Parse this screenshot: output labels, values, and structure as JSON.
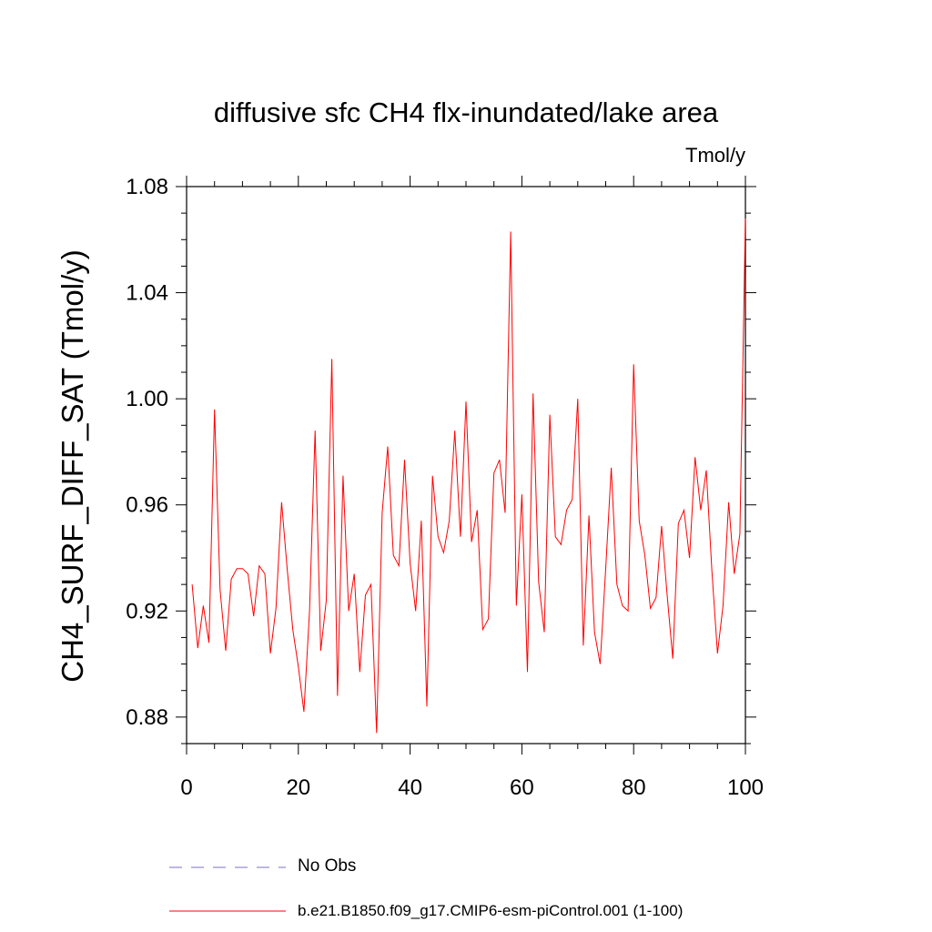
{
  "chart_data": {
    "type": "line",
    "title": "diffusive sfc CH4 flx-inundated/lake area",
    "units_label": "Tmol/y",
    "ylabel": "CH4_SURF_DIFF_SAT  (Tmol/y)",
    "xlabel": "",
    "xlim": [
      0,
      100
    ],
    "ylim": [
      0.87,
      1.08
    ],
    "xticks": [
      0,
      20,
      40,
      60,
      80,
      100
    ],
    "xtick_labels": [
      "0",
      "20",
      "40",
      "60",
      "80",
      "100"
    ],
    "yticks": [
      0.88,
      0.92,
      0.96,
      1.0,
      1.04,
      1.08
    ],
    "ytick_labels": [
      "0.88",
      "0.92",
      "0.96",
      "1.00",
      "1.04",
      "1.08"
    ],
    "grid": false,
    "legend_position": "bottom",
    "series": [
      {
        "name": "No Obs",
        "color": "#7b6fc8",
        "dash": "dashed",
        "values": []
      },
      {
        "name": "b.e21.B1850.f09_g17.CMIP6-esm-piControl.001 (1-100)",
        "color": "#ff0000",
        "dash": "solid",
        "x": [
          1,
          2,
          3,
          4,
          5,
          6,
          7,
          8,
          9,
          10,
          11,
          12,
          13,
          14,
          15,
          16,
          17,
          18,
          19,
          20,
          21,
          22,
          23,
          24,
          25,
          26,
          27,
          28,
          29,
          30,
          31,
          32,
          33,
          34,
          35,
          36,
          37,
          38,
          39,
          40,
          41,
          42,
          43,
          44,
          45,
          46,
          47,
          48,
          49,
          50,
          51,
          52,
          53,
          54,
          55,
          56,
          57,
          58,
          59,
          60,
          61,
          62,
          63,
          64,
          65,
          66,
          67,
          68,
          69,
          70,
          71,
          72,
          73,
          74,
          75,
          76,
          77,
          78,
          79,
          80,
          81,
          82,
          83,
          84,
          85,
          86,
          87,
          88,
          89,
          90,
          91,
          92,
          93,
          94,
          95,
          96,
          97,
          98,
          99,
          100
        ],
        "values": [
          0.93,
          0.906,
          0.922,
          0.908,
          0.996,
          0.928,
          0.905,
          0.932,
          0.936,
          0.936,
          0.934,
          0.918,
          0.937,
          0.934,
          0.904,
          0.921,
          0.961,
          0.936,
          0.913,
          0.899,
          0.882,
          0.92,
          0.988,
          0.905,
          0.924,
          1.015,
          0.888,
          0.971,
          0.92,
          0.934,
          0.897,
          0.926,
          0.93,
          0.874,
          0.957,
          0.982,
          0.941,
          0.937,
          0.977,
          0.938,
          0.92,
          0.954,
          0.884,
          0.971,
          0.948,
          0.942,
          0.954,
          0.988,
          0.948,
          0.999,
          0.946,
          0.958,
          0.913,
          0.917,
          0.972,
          0.977,
          0.957,
          1.063,
          0.922,
          0.964,
          0.897,
          1.002,
          0.931,
          0.912,
          0.994,
          0.948,
          0.945,
          0.958,
          0.962,
          1.0,
          0.907,
          0.956,
          0.912,
          0.9,
          0.936,
          0.974,
          0.93,
          0.922,
          0.92,
          1.013,
          0.954,
          0.941,
          0.921,
          0.925,
          0.952,
          0.926,
          0.902,
          0.953,
          0.958,
          0.94,
          0.978,
          0.958,
          0.973,
          0.935,
          0.904,
          0.922,
          0.961,
          0.934,
          0.949,
          1.068
        ]
      }
    ]
  }
}
